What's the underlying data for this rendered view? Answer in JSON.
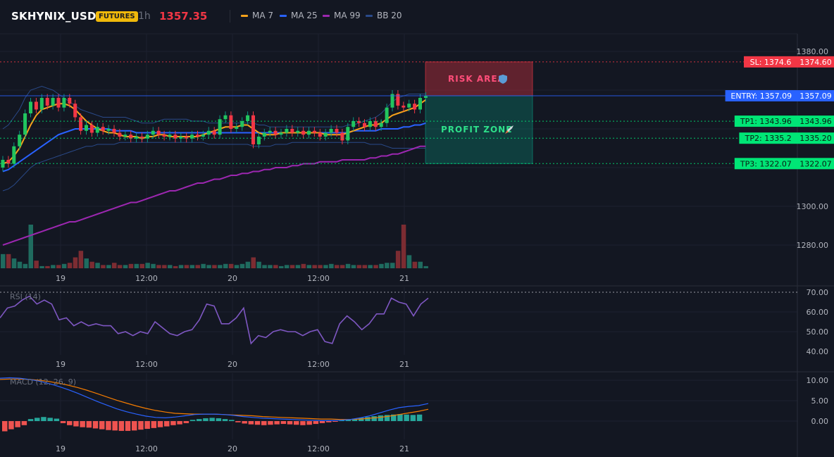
{
  "header": {
    "symbol": "SKHYNIX_USDT",
    "badge": "FUTURES",
    "timeframe": "1h",
    "price": "1357.35"
  },
  "legend": [
    {
      "label": "MA 7",
      "color": "#f7a21b"
    },
    {
      "label": "MA 25",
      "color": "#2962ff"
    },
    {
      "label": "MA 99",
      "color": "#9c27b0"
    },
    {
      "label": "BB 20",
      "color": "#2a4a8a"
    }
  ],
  "chart_data": [
    {
      "type": "candlestick",
      "x_ticks": [
        "19",
        "12:00",
        "20",
        "12:00",
        "21"
      ],
      "ylim": [
        1265,
        1384
      ],
      "y_ticks": [
        "1380.00",
        "1300.00",
        "1280.00"
      ],
      "grid": true,
      "candles_approx": [
        {
          "o": 1320,
          "c": 1324
        },
        {
          "o": 1324,
          "c": 1322
        },
        {
          "o": 1322,
          "c": 1331
        },
        {
          "o": 1331,
          "c": 1337
        },
        {
          "o": 1337,
          "c": 1348
        },
        {
          "o": 1348,
          "c": 1354
        },
        {
          "o": 1354,
          "c": 1350
        },
        {
          "o": 1350,
          "c": 1356
        },
        {
          "o": 1356,
          "c": 1352
        },
        {
          "o": 1352,
          "c": 1356
        },
        {
          "o": 1356,
          "c": 1351
        },
        {
          "o": 1351,
          "c": 1356
        },
        {
          "o": 1356,
          "c": 1353
        },
        {
          "o": 1353,
          "c": 1346
        },
        {
          "o": 1346,
          "c": 1339
        },
        {
          "o": 1339,
          "c": 1342
        },
        {
          "o": 1342,
          "c": 1338
        },
        {
          "o": 1338,
          "c": 1341
        },
        {
          "o": 1341,
          "c": 1339
        },
        {
          "o": 1339,
          "c": 1340
        },
        {
          "o": 1340,
          "c": 1338
        },
        {
          "o": 1338,
          "c": 1336
        },
        {
          "o": 1336,
          "c": 1337
        },
        {
          "o": 1337,
          "c": 1335
        },
        {
          "o": 1335,
          "c": 1336
        },
        {
          "o": 1336,
          "c": 1335
        },
        {
          "o": 1335,
          "c": 1337
        },
        {
          "o": 1337,
          "c": 1339
        },
        {
          "o": 1339,
          "c": 1337
        },
        {
          "o": 1337,
          "c": 1336
        },
        {
          "o": 1336,
          "c": 1337
        },
        {
          "o": 1337,
          "c": 1335
        },
        {
          "o": 1335,
          "c": 1336
        },
        {
          "o": 1336,
          "c": 1335
        },
        {
          "o": 1335,
          "c": 1337
        },
        {
          "o": 1337,
          "c": 1336
        },
        {
          "o": 1336,
          "c": 1337
        },
        {
          "o": 1337,
          "c": 1339
        },
        {
          "o": 1339,
          "c": 1337
        },
        {
          "o": 1337,
          "c": 1345
        },
        {
          "o": 1345,
          "c": 1347
        },
        {
          "o": 1347,
          "c": 1340
        },
        {
          "o": 1340,
          "c": 1341
        },
        {
          "o": 1341,
          "c": 1344
        },
        {
          "o": 1344,
          "c": 1347
        },
        {
          "o": 1347,
          "c": 1332
        },
        {
          "o": 1332,
          "c": 1336
        },
        {
          "o": 1336,
          "c": 1338
        },
        {
          "o": 1338,
          "c": 1339
        },
        {
          "o": 1339,
          "c": 1337
        },
        {
          "o": 1337,
          "c": 1338
        },
        {
          "o": 1338,
          "c": 1340
        },
        {
          "o": 1340,
          "c": 1338
        },
        {
          "o": 1338,
          "c": 1339
        },
        {
          "o": 1339,
          "c": 1337
        },
        {
          "o": 1337,
          "c": 1339
        },
        {
          "o": 1339,
          "c": 1338
        },
        {
          "o": 1338,
          "c": 1336
        },
        {
          "o": 1336,
          "c": 1338
        },
        {
          "o": 1338,
          "c": 1340
        },
        {
          "o": 1340,
          "c": 1338
        },
        {
          "o": 1338,
          "c": 1334
        },
        {
          "o": 1334,
          "c": 1341
        },
        {
          "o": 1341,
          "c": 1344
        },
        {
          "o": 1344,
          "c": 1343
        },
        {
          "o": 1343,
          "c": 1341
        },
        {
          "o": 1341,
          "c": 1344
        },
        {
          "o": 1344,
          "c": 1341
        },
        {
          "o": 1341,
          "c": 1343
        },
        {
          "o": 1343,
          "c": 1351
        },
        {
          "o": 1351,
          "c": 1358
        },
        {
          "o": 1358,
          "c": 1352
        },
        {
          "o": 1352,
          "c": 1351
        },
        {
          "o": 1351,
          "c": 1353
        },
        {
          "o": 1353,
          "c": 1350
        },
        {
          "o": 1350,
          "c": 1356
        },
        {
          "o": 1356,
          "c": 1357
        }
      ],
      "volume_approx": [
        13,
        13,
        9,
        6,
        4,
        40,
        7,
        2,
        2,
        3,
        3,
        4,
        5,
        10,
        16,
        9,
        6,
        5,
        3,
        3,
        5,
        3,
        3,
        4,
        4,
        4,
        5,
        4,
        3,
        3,
        3,
        2,
        3,
        3,
        3,
        3,
        4,
        3,
        3,
        3,
        4,
        4,
        3,
        4,
        6,
        10,
        6,
        3,
        3,
        3,
        2,
        3,
        3,
        3,
        4,
        3,
        3,
        3,
        3,
        4,
        3,
        3,
        4,
        3,
        3,
        3,
        3,
        3,
        4,
        5,
        5,
        16,
        40,
        12,
        6,
        6,
        2
      ],
      "ma7_approx": [
        1322,
        1323,
        1326,
        1330,
        1336,
        1342,
        1347,
        1350,
        1351,
        1352,
        1353,
        1353,
        1352,
        1350,
        1347,
        1344,
        1342,
        1340,
        1339,
        1338,
        1338,
        1337,
        1336,
        1336,
        1336,
        1335,
        1336,
        1336,
        1337,
        1337,
        1336,
        1336,
        1336,
        1336,
        1336,
        1336,
        1337,
        1338,
        1339,
        1340,
        1341,
        1341,
        1341,
        1342,
        1342,
        1340,
        1338,
        1337,
        1337,
        1337,
        1338,
        1338,
        1338,
        1338,
        1338,
        1338,
        1338,
        1338,
        1337,
        1337,
        1337,
        1337,
        1338,
        1339,
        1340,
        1341,
        1342,
        1342,
        1343,
        1345,
        1347,
        1348,
        1349,
        1350,
        1351,
        1353,
        1355
      ],
      "ma25_approx": [
        1318,
        1319,
        1321,
        1323,
        1325,
        1327,
        1329,
        1331,
        1333,
        1335,
        1337,
        1338,
        1339,
        1340,
        1340,
        1340,
        1340,
        1340,
        1340,
        1340,
        1339,
        1339,
        1339,
        1339,
        1338,
        1338,
        1338,
        1338,
        1338,
        1338,
        1338,
        1338,
        1338,
        1338,
        1338,
        1338,
        1338,
        1338,
        1338,
        1338,
        1338,
        1338,
        1338,
        1338,
        1338,
        1338,
        1338,
        1338,
        1338,
        1338,
        1338,
        1338,
        1338,
        1338,
        1338,
        1338,
        1338,
        1338,
        1338,
        1338,
        1338,
        1338,
        1338,
        1339,
        1339,
        1339,
        1339,
        1339,
        1340,
        1340,
        1340,
        1340,
        1341,
        1341,
        1342,
        1342,
        1343
      ],
      "ma99_approx": [
        1280,
        1281,
        1282,
        1283,
        1284,
        1285,
        1286,
        1287,
        1288,
        1289,
        1290,
        1291,
        1292,
        1292,
        1293,
        1294,
        1295,
        1296,
        1297,
        1298,
        1299,
        1300,
        1301,
        1302,
        1302,
        1303,
        1304,
        1305,
        1306,
        1307,
        1308,
        1308,
        1309,
        1310,
        1311,
        1312,
        1312,
        1313,
        1314,
        1314,
        1315,
        1316,
        1316,
        1317,
        1317,
        1318,
        1318,
        1319,
        1319,
        1320,
        1320,
        1320,
        1321,
        1321,
        1322,
        1322,
        1322,
        1323,
        1323,
        1323,
        1323,
        1324,
        1324,
        1324,
        1324,
        1324,
        1325,
        1325,
        1326,
        1326,
        1327,
        1327,
        1328,
        1329,
        1330,
        1331,
        1331
      ],
      "bb_upper_approx": [
        1340,
        1342,
        1346,
        1350,
        1356,
        1360,
        1361,
        1362,
        1361,
        1360,
        1358,
        1356,
        1354,
        1352,
        1350,
        1349,
        1348,
        1347,
        1346,
        1346,
        1346,
        1346,
        1346,
        1345,
        1344,
        1343,
        1343,
        1343,
        1344,
        1345,
        1345,
        1345,
        1345,
        1345,
        1344,
        1344,
        1344,
        1343,
        1343,
        1343,
        1343,
        1343,
        1343,
        1343,
        1343,
        1343,
        1342,
        1342,
        1341,
        1341,
        1341,
        1341,
        1341,
        1341,
        1341,
        1341,
        1341,
        1341,
        1341,
        1341,
        1341,
        1341,
        1342,
        1342,
        1343,
        1344,
        1345,
        1346,
        1348,
        1351,
        1354,
        1356,
        1357,
        1358,
        1358,
        1358,
        1358
      ],
      "bb_lower_approx": [
        1308,
        1309,
        1311,
        1314,
        1317,
        1320,
        1322,
        1323,
        1324,
        1325,
        1326,
        1327,
        1328,
        1329,
        1330,
        1331,
        1331,
        1332,
        1332,
        1332,
        1332,
        1333,
        1333,
        1333,
        1333,
        1333,
        1333,
        1333,
        1333,
        1333,
        1333,
        1333,
        1333,
        1333,
        1333,
        1333,
        1333,
        1332,
        1332,
        1332,
        1332,
        1332,
        1332,
        1332,
        1332,
        1331,
        1331,
        1331,
        1331,
        1332,
        1332,
        1332,
        1333,
        1333,
        1333,
        1333,
        1333,
        1333,
        1333,
        1333,
        1333,
        1333,
        1333,
        1333,
        1333,
        1333,
        1332,
        1332,
        1332,
        1331,
        1330,
        1330,
        1330,
        1330,
        1330,
        1330,
        1330
      ],
      "levels": [
        {
          "key": "sl",
          "label": "SL: 1374.6",
          "value_text": "1374.60",
          "value": 1374.6,
          "color": "#f23645",
          "text_color": "#ffffff",
          "line": "dotted"
        },
        {
          "key": "entry",
          "label": "ENTRY: 1357.09",
          "value_text": "1357.09",
          "value": 1357.09,
          "color": "#2962ff",
          "text_color": "#ffffff",
          "line": "solid"
        },
        {
          "key": "tp1",
          "label": "TP1: 1343.96",
          "value_text": "1343.96",
          "value": 1343.96,
          "color": "#00e676",
          "text_color": "#0b1a12",
          "line": "dotted"
        },
        {
          "key": "tp2",
          "label": "TP2: 1335.2",
          "value_text": "1335.20",
          "value": 1335.2,
          "color": "#00e676",
          "text_color": "#0b1a12",
          "line": "dotted"
        },
        {
          "key": "tp3",
          "label": "TP3: 1322.07",
          "value_text": "1322.07",
          "value": 1322.07,
          "color": "#00e676",
          "text_color": "#0b1a12",
          "line": "dotted"
        }
      ],
      "zones": [
        {
          "key": "risk",
          "label": "RISK AREA",
          "icon": "shield-icon",
          "from": 1357.09,
          "to": 1374.6,
          "color": "#f23645"
        },
        {
          "key": "profit",
          "label": "PROFIT ZONE",
          "icon": "rocket-icon",
          "from": 1322.07,
          "to": 1357.09,
          "color": "#089981"
        }
      ]
    },
    {
      "type": "line",
      "title": "RSI (14)",
      "ylim": [
        38,
        72
      ],
      "y_ticks": [
        "70.00",
        "60.00",
        "50.00",
        "40.00"
      ],
      "x_ticks": [
        "19",
        "12:00",
        "20",
        "12:00",
        "21"
      ],
      "color": "#7e57c2",
      "reference_line": 70,
      "values_approx": [
        57,
        62,
        63,
        66,
        68,
        64,
        66,
        64,
        56,
        57,
        53,
        55,
        53,
        54,
        53,
        53,
        49,
        50,
        48,
        50,
        49,
        55,
        52,
        49,
        48,
        50,
        51,
        56,
        64,
        63,
        54,
        54,
        57,
        62,
        44,
        48,
        47,
        50,
        51,
        50,
        50,
        48,
        50,
        51,
        45,
        44,
        54,
        58,
        55,
        51,
        54,
        59,
        59,
        67,
        65,
        64,
        58,
        64,
        67
      ]
    },
    {
      "type": "bar",
      "title": "MACD (12, 26, 9)",
      "ylim": [
        -4,
        12
      ],
      "y_ticks": [
        "10.00",
        "5.00",
        "0.00"
      ],
      "x_ticks": [
        "19",
        "12:00",
        "20",
        "12:00",
        "21"
      ],
      "histogram_approx": [
        -2.5,
        -2,
        -1.5,
        -1,
        0.5,
        0.8,
        1,
        0.8,
        0.6,
        -0.5,
        -1,
        -1.3,
        -1.5,
        -1.6,
        -1.8,
        -2,
        -2.2,
        -2.3,
        -2.4,
        -2.4,
        -2.3,
        -2.1,
        -1.9,
        -1.7,
        -1.5,
        -1.3,
        -1,
        -0.8,
        -0.5,
        0.3,
        0.5,
        0.7,
        0.8,
        0.7,
        0.5,
        0.3,
        -0.3,
        -0.6,
        -0.8,
        -0.9,
        -1,
        -0.9,
        -0.8,
        -0.7,
        -0.8,
        -0.9,
        -1,
        -0.9,
        -0.7,
        -0.5,
        -0.3,
        -0.1,
        0.2,
        0.4,
        0.6,
        0.8,
        1,
        1.2,
        1.4,
        1.5,
        1.6,
        1.7,
        1.6,
        1.5,
        1.6
      ],
      "macd_approx": [
        10.5,
        10.6,
        10.5,
        10.2,
        9.8,
        9.2,
        8.5,
        7.7,
        6.8,
        5.8,
        4.8,
        3.9,
        3,
        2.3,
        1.7,
        1.2,
        0.9,
        0.8,
        1,
        1.3,
        1.6,
        1.7,
        1.7,
        1.6,
        1.4,
        1.1,
        0.9,
        0.7,
        0.6,
        0.5,
        0.4,
        0.3,
        0.2,
        0.1,
        0.1,
        0.2,
        0.4,
        0.8,
        1.3,
        2,
        2.7,
        3.3,
        3.6,
        3.8,
        4.3
      ],
      "signal_approx": [
        10.2,
        10.3,
        10.3,
        10.2,
        10,
        9.7,
        9.3,
        8.8,
        8.2,
        7.5,
        6.7,
        5.9,
        5.1,
        4.4,
        3.7,
        3.1,
        2.6,
        2.2,
        1.9,
        1.8,
        1.7,
        1.7,
        1.7,
        1.6,
        1.5,
        1.4,
        1.3,
        1.1,
        1,
        0.9,
        0.8,
        0.7,
        0.6,
        0.5,
        0.5,
        0.4,
        0.4,
        0.5,
        0.7,
        0.9,
        1.2,
        1.6,
        2,
        2.4,
        2.9
      ],
      "colors": {
        "up": "#26a69a",
        "down": "#ef5350",
        "macd": "#2962ff",
        "signal": "#f57c00"
      }
    }
  ]
}
